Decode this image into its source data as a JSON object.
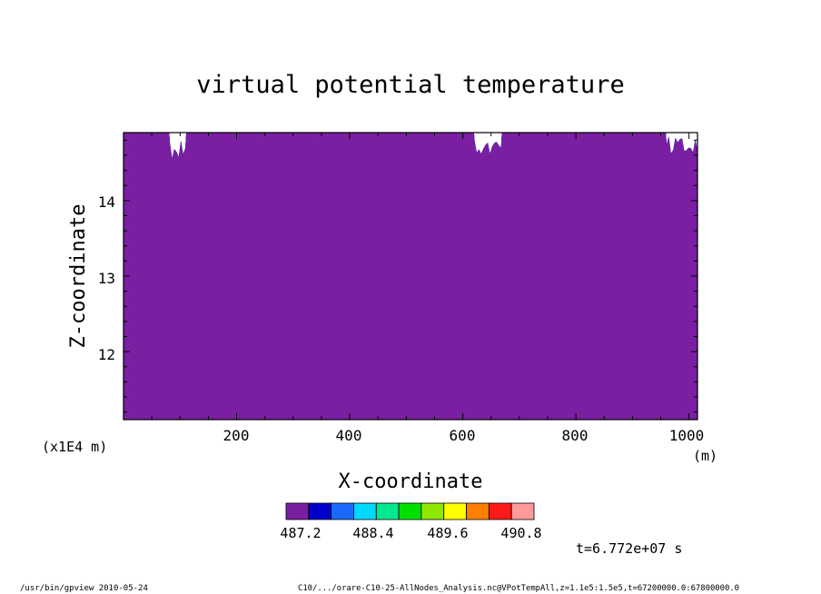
{
  "chart_data": {
    "type": "heatmap",
    "title": "virtual potential temperature",
    "xlabel": "X-coordinate",
    "ylabel": "Z-coordinate",
    "x_unit": "(m)",
    "y_scale_label": "(x1E4 m)",
    "xlim": [
      0,
      1015
    ],
    "ylim": [
      11.1,
      14.9
    ],
    "x_ticks": [
      "200",
      "400",
      "600",
      "800",
      "1000"
    ],
    "y_ticks": [
      "12",
      "13",
      "14"
    ],
    "levels": [
      487.2,
      487.6,
      488.0,
      488.4,
      488.8,
      489.2,
      489.6,
      490.0,
      490.4,
      490.8
    ],
    "colorbar_labels": [
      "487.2",
      "488.4",
      "489.6",
      "490.8"
    ],
    "colors": [
      "#7a1fa2",
      "#0000cc",
      "#1a6aff",
      "#00d8ff",
      "#00e890",
      "#00e000",
      "#90e800",
      "#ffff00",
      "#ff8000",
      "#ff1a1a",
      "#ff9a9a"
    ],
    "time_label": "t=6.772e+07 s",
    "footer_left": "/usr/bin/gpview  2010-05-24",
    "footer_right": "C10/.../orare-C10-25-AllNodes_Analysis.nc@VPotTempAll,z=1.1e5:1.5e5,t=67200000.0:67800000.0"
  }
}
